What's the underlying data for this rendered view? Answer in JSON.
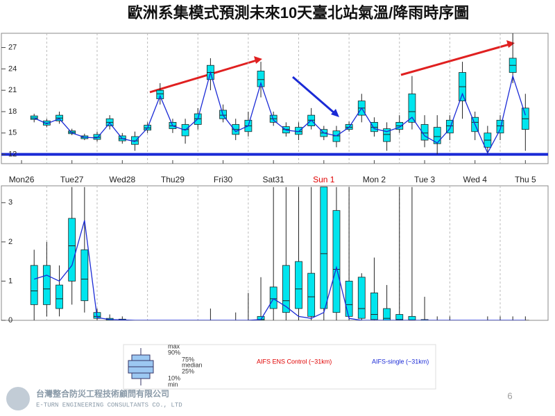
{
  "title": "歐洲系集模式預測未來10天臺北站氣溫/降雨時序圖",
  "chart_data": [
    {
      "type": "boxplot",
      "x": [
        0,
        1,
        2,
        3,
        4,
        5,
        6,
        7,
        8,
        9,
        10,
        11,
        12,
        13,
        14,
        15,
        16,
        17,
        18,
        19,
        20,
        21,
        22,
        23,
        24,
        25,
        26,
        27,
        28,
        29,
        30,
        31,
        32,
        33,
        34,
        35,
        36,
        37,
        38,
        39
      ],
      "xlim": [
        -2.6,
        40.8
      ],
      "xticks": [
        {
          "value": -1,
          "label": "Mon26"
        },
        {
          "value": 3,
          "label": "Tue27"
        },
        {
          "value": 7,
          "label": "Wed28"
        },
        {
          "value": 11,
          "label": "Thu29"
        },
        {
          "value": 15,
          "label": "Fri30"
        },
        {
          "value": 19,
          "label": "Sat31"
        },
        {
          "value": 23,
          "label": "Sun 1"
        },
        {
          "value": 27,
          "label": "Mon 2"
        },
        {
          "value": 31,
          "label": "Tue 3"
        },
        {
          "value": 35,
          "label": "Wed 4"
        },
        {
          "value": 39,
          "label": "Thu 5"
        }
      ],
      "xtick_colors": [
        "#222",
        "#222",
        "#222",
        "#222",
        "#222",
        "#222",
        "#e00000",
        "#222",
        "#222",
        "#222",
        "#222"
      ],
      "ylim": [
        10.7,
        29
      ],
      "yticks": [
        12,
        15,
        18,
        21,
        24,
        27
      ],
      "hline": 12,
      "hline_color": "#1a2ad6",
      "box_color": "#00e5ee",
      "min": [
        16.5,
        15.8,
        16.3,
        14.7,
        14,
        13.8,
        15.5,
        13.5,
        12.5,
        15,
        19,
        15,
        13.5,
        15.5,
        21,
        16.5,
        14,
        14.5,
        20,
        16,
        14.5,
        14,
        15.5,
        14,
        13,
        15.2,
        16.5,
        14.5,
        12.5,
        15,
        15.5,
        13,
        12,
        14,
        17,
        14,
        12,
        14,
        22,
        12.5
      ],
      "q1": [
        16.9,
        16.1,
        16.7,
        14.9,
        14.2,
        14.1,
        16,
        13.9,
        13.4,
        15.4,
        19.8,
        15.6,
        14.6,
        16.2,
        22.5,
        17,
        14.8,
        15.2,
        21.5,
        16.5,
        15,
        14.8,
        16,
        14.5,
        13.8,
        15.5,
        17.5,
        15.2,
        13.8,
        15.5,
        16.5,
        14,
        13.5,
        15,
        19.5,
        15.2,
        13,
        15,
        23.5,
        15.5
      ],
      "median": [
        17.1,
        16.4,
        17.1,
        15.1,
        14.4,
        14.4,
        16.5,
        14.2,
        13.9,
        15.7,
        20.5,
        16,
        15.5,
        17,
        23.5,
        17.5,
        15.5,
        16,
        22.5,
        17,
        15.5,
        15.2,
        16.8,
        15,
        14.6,
        15.8,
        18.5,
        15.8,
        14.8,
        16,
        18,
        15,
        14.5,
        16,
        21.5,
        16.5,
        14,
        16,
        24.5,
        17
      ],
      "q3": [
        17.4,
        16.7,
        17.5,
        15.3,
        14.6,
        14.8,
        17,
        14.6,
        14.5,
        16.1,
        21,
        16.5,
        16.2,
        17.7,
        24.5,
        18.2,
        16.2,
        16.8,
        23.7,
        17.5,
        15.9,
        15.8,
        17.5,
        15.5,
        15.3,
        16.2,
        19.5,
        16.5,
        15.6,
        16.5,
        20.5,
        16.2,
        15.8,
        16.8,
        23.5,
        17.2,
        15,
        16.8,
        25.5,
        18.5
      ],
      "max": [
        17.7,
        17,
        18,
        15.6,
        14.9,
        15.2,
        17.5,
        15,
        15.2,
        16.5,
        22,
        17,
        17,
        18.5,
        25.5,
        19,
        17,
        18,
        25,
        18,
        16.5,
        16.5,
        18.5,
        16,
        16,
        16.6,
        20.5,
        17.2,
        16.5,
        17.5,
        23,
        17.5,
        17.5,
        17.5,
        25,
        18,
        16,
        17.5,
        29,
        20.5
      ],
      "line": {
        "name": "AIFS-single (~31km)",
        "color": "#1a2ad6",
        "values": [
          17.1,
          16.3,
          17,
          15,
          14.4,
          14.3,
          16.4,
          14.2,
          13.8,
          15.7,
          20.2,
          16,
          15.4,
          17,
          23.5,
          17.5,
          15.2,
          16,
          22,
          16.8,
          15.4,
          15.2,
          16.8,
          15,
          14.6,
          15.8,
          18.5,
          15.6,
          15.2,
          15.8,
          17.2,
          14.6,
          13.6,
          15.6,
          20.5,
          16.2,
          12.2,
          15.5,
          23,
          17.5
        ]
      }
    },
    {
      "type": "boxplot",
      "x": [
        0,
        1,
        2,
        3,
        4,
        5,
        6,
        7,
        8,
        9,
        10,
        11,
        12,
        13,
        14,
        15,
        16,
        17,
        18,
        19,
        20,
        21,
        22,
        23,
        24,
        25,
        26,
        27,
        28,
        29,
        30,
        31,
        32,
        33,
        34,
        35,
        36,
        37,
        38,
        39
      ],
      "xlim": [
        -2.6,
        40.8
      ],
      "ylim": [
        0,
        3.43
      ],
      "yticks": [
        0,
        1,
        2,
        3
      ],
      "box_color": "#00e5ee",
      "min": [
        0,
        0.1,
        0.1,
        0.4,
        0.2,
        0,
        0,
        0,
        0,
        0,
        0,
        0,
        0,
        0,
        0,
        0,
        0,
        0,
        0,
        0,
        0,
        0,
        0,
        0,
        0,
        0,
        0,
        0,
        0,
        0,
        0,
        0,
        0,
        0,
        0,
        0,
        0,
        0,
        0,
        0
      ],
      "q1": [
        0.4,
        0.4,
        0.3,
        1,
        0.5,
        0.05,
        0,
        0,
        0,
        0,
        0,
        0,
        0,
        0,
        0,
        0,
        0,
        0,
        0,
        0.3,
        0.2,
        0.3,
        0.1,
        0.3,
        0.2,
        0.1,
        0.05,
        0.02,
        0,
        0,
        0,
        0,
        0,
        0,
        0,
        0,
        0,
        0,
        0,
        0
      ],
      "median": [
        0.75,
        0.8,
        0.55,
        1.9,
        1.05,
        0.1,
        0.02,
        0.01,
        0,
        0,
        0,
        0,
        0,
        0,
        0,
        0,
        0,
        0,
        0.02,
        0.55,
        0.5,
        0.8,
        0.6,
        1.7,
        1.3,
        0.4,
        0.3,
        0.15,
        0.05,
        0.02,
        0.01,
        0,
        0,
        0,
        0,
        0,
        0,
        0,
        0,
        0
      ],
      "q3": [
        1.4,
        1.4,
        0.9,
        2.6,
        1.8,
        0.2,
        0.05,
        0.03,
        0,
        0,
        0,
        0,
        0,
        0,
        0,
        0,
        0,
        0,
        0.1,
        0.85,
        1.4,
        1.5,
        1.2,
        3.4,
        2.8,
        1,
        1.1,
        0.7,
        0.3,
        0.15,
        0.1,
        0.02,
        0,
        0,
        0,
        0,
        0,
        0,
        0,
        0
      ],
      "max": [
        1.8,
        2,
        1.4,
        3.4,
        3.4,
        0.3,
        0.15,
        0.1,
        0,
        0,
        0,
        0,
        0,
        0,
        0.3,
        0,
        0.2,
        0.7,
        1.1,
        3.4,
        3.4,
        3.4,
        3.4,
        3.4,
        3.4,
        3.4,
        1.2,
        1.6,
        0.9,
        3.4,
        3.4,
        0.6,
        0.1,
        0.1,
        0,
        0,
        0.1,
        0.1,
        0.1,
        0.1
      ],
      "line": {
        "name": "AIFS-single (~31km)",
        "color": "#1a2ad6",
        "values": [
          1.05,
          1.15,
          1,
          1.4,
          2.55,
          0.07,
          0.02,
          0.01,
          0,
          0,
          0,
          0,
          0,
          0,
          0,
          0,
          0,
          0,
          0.02,
          0.55,
          0.35,
          0.1,
          0.05,
          0.2,
          1.35,
          0.05,
          0,
          0,
          0,
          0,
          0,
          0,
          0,
          0,
          0,
          0,
          0,
          0,
          0,
          0
        ]
      }
    }
  ],
  "legend": {
    "stats": [
      "max",
      "90%",
      "75%",
      "median",
      "25%",
      "10%",
      "min"
    ],
    "control": "AIFS ENS Control (~31km)",
    "control_color": "#e00000",
    "single": "AIFS-single (~31km)",
    "single_color": "#1a2ad6"
  },
  "footer": {
    "company": "台灣整合防災工程技術顧問有限公司",
    "company_en": "E-TURN ENGINEERING CONSULTANTS CO., LTD",
    "page": "6"
  }
}
